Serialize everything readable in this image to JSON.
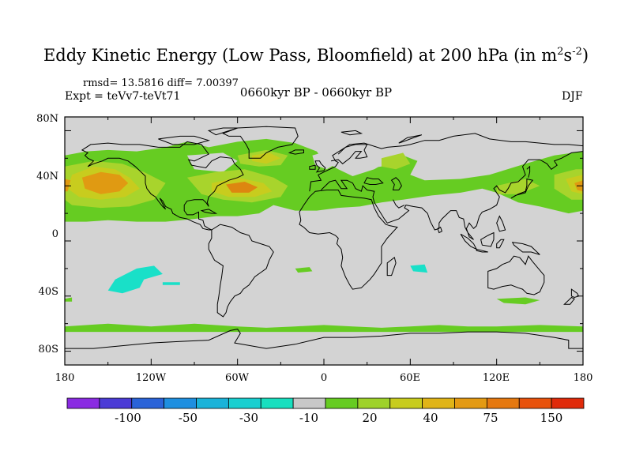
{
  "title": {
    "main": "Eddy Kinetic Energy (Low Pass, Bloomfield) at 200 hPa (in m",
    "unit_sup1": "2",
    "unit_mid": "s",
    "unit_sup2": "-2",
    "close": ")"
  },
  "stats": "rmsd= 13.5816 diff= 7.00397",
  "expt": "Expt = teVv7-teVt71",
  "period": "0660kyr BP - 0660kyr BP",
  "season": "DJF",
  "axes": {
    "y_ticks": [
      "80N",
      "40N",
      "0",
      "40S",
      "80S"
    ],
    "x_ticks": [
      "180",
      "120W",
      "60W",
      "0",
      "60E",
      "120E",
      "180"
    ]
  },
  "colorbar": {
    "labels": [
      "-100",
      "-50",
      "-30",
      "-10",
      "20",
      "40",
      "75",
      "150"
    ],
    "colors": [
      "#8a2be2",
      "#4b3bd6",
      "#2a63d8",
      "#1e8fe0",
      "#1ab3d9",
      "#19cfd0",
      "#18dfbf",
      "#c8c8c8",
      "#66cc22",
      "#9ed22a",
      "#c8cc1e",
      "#e0b417",
      "#e49a12",
      "#e5780f",
      "#e8520c",
      "#e02a0a"
    ]
  },
  "map": {
    "background": "#d3d3d3",
    "lon_range": [
      -180,
      180
    ],
    "lat_range": [
      -90,
      90
    ],
    "field_colors": {
      "green": "#66cc22",
      "yellowgreen": "#a8d42c",
      "yellow": "#c8cc1e",
      "orange": "#e09a12",
      "darkorange": "#dd8610",
      "cyan": "#19e0c8"
    }
  }
}
